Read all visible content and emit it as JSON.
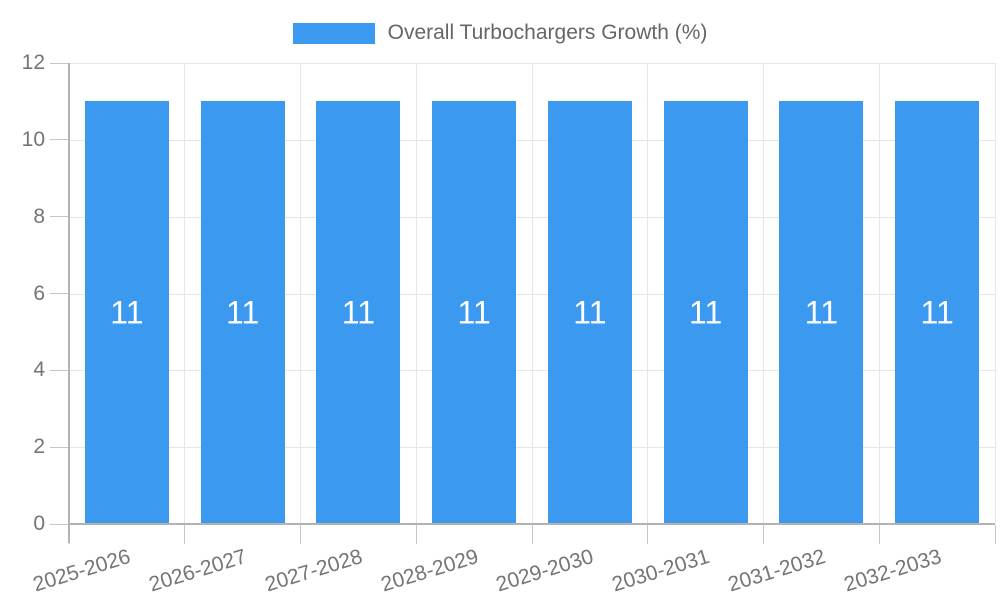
{
  "chart_data": {
    "type": "bar",
    "legend": {
      "position": "top-center",
      "items": [
        {
          "label": "Overall Turbochargers Growth (%)",
          "color": "#3b99f0"
        }
      ]
    },
    "categories": [
      "2025-2026",
      "2026-2027",
      "2027-2028",
      "2028-2029",
      "2029-2030",
      "2030-2031",
      "2031-2032",
      "2032-2033"
    ],
    "series": [
      {
        "name": "Overall Turbochargers Growth (%)",
        "color": "#3b99f0",
        "values": [
          11,
          11,
          11,
          11,
          11,
          11,
          11,
          11
        ]
      }
    ],
    "value_labels_shown": true,
    "xlabel": "",
    "ylabel": "",
    "ylim": [
      0,
      12
    ],
    "yticks": [
      0,
      2,
      4,
      6,
      8,
      10,
      12
    ],
    "grid": true,
    "colors": {
      "bar": "#3b99f0",
      "grid": "#e6e6e6",
      "axis": "#b3b3b3",
      "tick": "#c6c6c6",
      "axis_label": "#757575",
      "legend_label": "#666666",
      "value_label": "#ffffff",
      "background": "#ffffff"
    }
  }
}
